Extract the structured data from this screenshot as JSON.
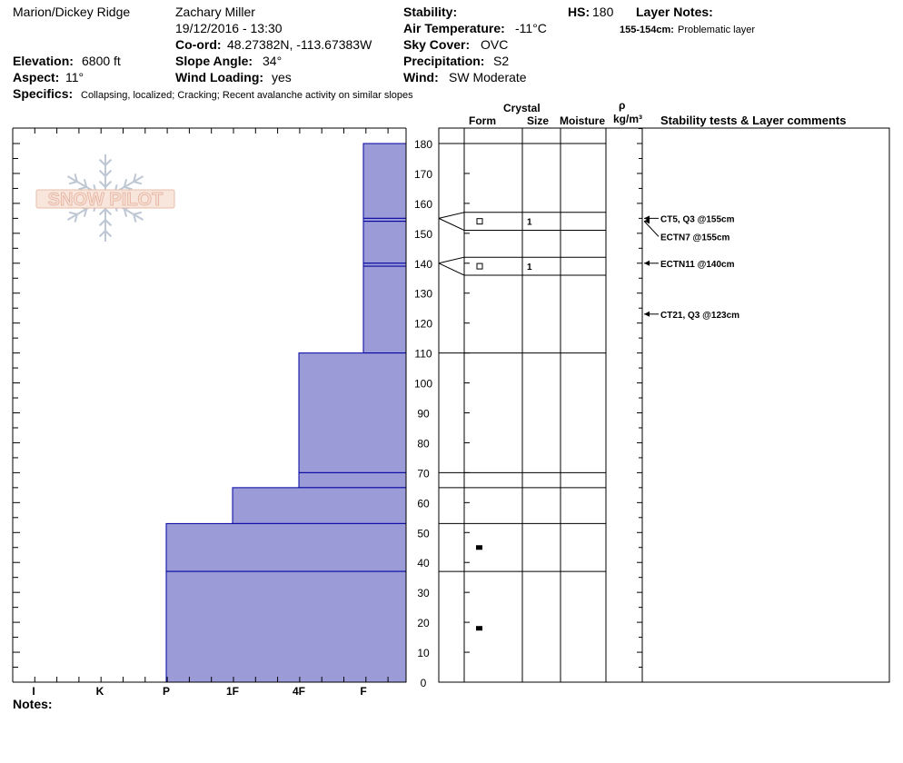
{
  "header": {
    "location": "Marion/Dickey Ridge",
    "observer": "Zachary Miller",
    "datetime": "19/12/2016 - 13:30",
    "coord_label": "Co-ord:",
    "coord_value": "48.27382N, -113.67383W",
    "elevation_label": "Elevation:",
    "elevation_value": "6800 ft",
    "aspect_label": "Aspect:",
    "aspect_value": "11°",
    "slope_label": "Slope Angle:",
    "slope_value": "34°",
    "wind_loading_label": "Wind Loading:",
    "wind_loading_value": "yes",
    "stability_label": "Stability:",
    "stability_value": "",
    "air_temp_label": "Air Temperature:",
    "air_temp_value": "-11°C",
    "sky_label": "Sky Cover:",
    "sky_value": "OVC",
    "precip_label": "Precipitation:",
    "precip_value": "S2",
    "wind_label": "Wind:",
    "wind_value": "SW Moderate",
    "hs_label": "HS:",
    "hs_value": "180",
    "layer_notes_label": "Layer Notes:",
    "layer_note_range": "155-154cm:",
    "layer_note_text": "Problematic layer",
    "specifics_label": "Specifics:",
    "specifics_value": "Collapsing, localized;  Cracking;  Recent avalanche activity on similar slopes",
    "notes_label": "Notes:"
  },
  "columns": {
    "crystal": "Crystal",
    "form": "Form",
    "size": "Size",
    "moisture": "Moisture",
    "rho": "ρ",
    "density_unit": "kg/m³",
    "stability_comments": "Stability tests & Layer comments"
  },
  "logo_text": "SNOW PILOT",
  "colors": {
    "hardness_fill": "#9b9bd7",
    "hardness_line": "#0000a0"
  },
  "chart_data": {
    "type": "bar",
    "orientation": "horizontal",
    "y_axis": {
      "label": "",
      "range": [
        0,
        185
      ],
      "ticks": [
        0,
        10,
        20,
        30,
        40,
        50,
        60,
        70,
        80,
        90,
        100,
        110,
        120,
        130,
        140,
        150,
        160,
        170,
        180
      ]
    },
    "x_axis": {
      "label": "",
      "categories": [
        "I",
        "K",
        "P",
        "1F",
        "4F",
        "F"
      ]
    },
    "hardness_layers": [
      {
        "top": 180,
        "bottom": 155,
        "hardness": "F"
      },
      {
        "top": 155,
        "bottom": 154,
        "hardness": "F"
      },
      {
        "top": 154,
        "bottom": 140,
        "hardness": "F"
      },
      {
        "top": 140,
        "bottom": 139,
        "hardness": "F"
      },
      {
        "top": 139,
        "bottom": 110,
        "hardness": "F"
      },
      {
        "top": 110,
        "bottom": 70,
        "hardness": "4F"
      },
      {
        "top": 70,
        "bottom": 65,
        "hardness": "4F"
      },
      {
        "top": 65,
        "bottom": 53,
        "hardness": "1F"
      },
      {
        "top": 53,
        "bottom": 37,
        "hardness": "P"
      },
      {
        "top": 37,
        "bottom": 0,
        "hardness": "P"
      }
    ],
    "layer_boundaries": [
      180,
      157,
      151,
      142,
      136,
      110,
      70,
      65,
      53,
      37
    ],
    "crystals": [
      {
        "height": 154,
        "form": "open-square",
        "size": "1"
      },
      {
        "height": 139,
        "form": "open-square",
        "size": "1"
      },
      {
        "height": 45,
        "form": "filled-rect",
        "size": ""
      },
      {
        "height": 18,
        "form": "filled-rect",
        "size": ""
      }
    ],
    "stability_tests": [
      {
        "height": 155,
        "label": "CT5, Q3 @155cm"
      },
      {
        "height": 155,
        "label": "ECTN7 @155cm"
      },
      {
        "height": 140,
        "label": "ECTN11 @140cm"
      },
      {
        "height": 123,
        "label": "CT21, Q3 @123cm"
      }
    ]
  }
}
